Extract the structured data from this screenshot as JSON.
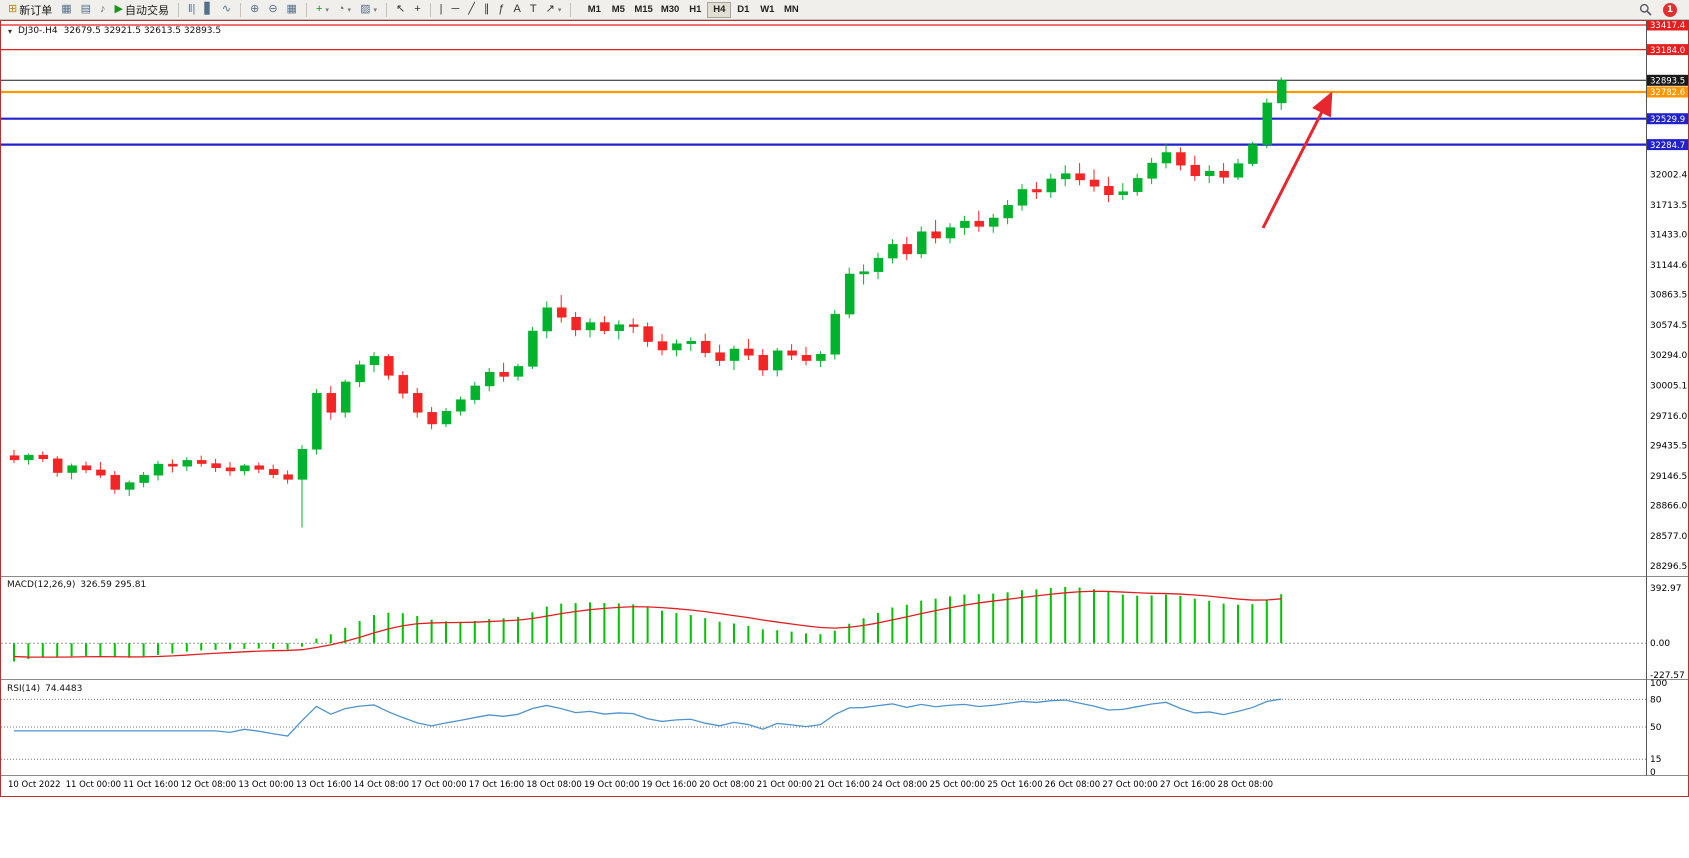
{
  "icons": {
    "collapse_arrow": "▾"
  },
  "toolbar": {
    "items": [
      {
        "name": "new-order",
        "glyph": "⊞",
        "color": "#b8860b",
        "label": "新订单"
      },
      {
        "name": "charts",
        "glyph": "▦",
        "color": "#55708a"
      },
      {
        "name": "profiles",
        "glyph": "▤",
        "color": "#55708a"
      },
      {
        "name": "alerts",
        "glyph": "♪",
        "color": "#55708a"
      },
      {
        "name": "auto-trading",
        "glyph": "▶",
        "color": "#169616",
        "label": "自动交易"
      },
      {
        "sep": true
      },
      {
        "name": "bar-chart-mode",
        "glyph": "‖|",
        "color": "#55708a"
      },
      {
        "name": "candle-chart-mode",
        "glyph": "▋",
        "color": "#55708a"
      },
      {
        "name": "line-chart-mode",
        "glyph": "∿",
        "color": "#55708a"
      },
      {
        "sep": true
      },
      {
        "name": "zoom-in",
        "glyph": "⊕",
        "color": "#55708a"
      },
      {
        "name": "zoom-out",
        "glyph": "⊖",
        "color": "#55708a"
      },
      {
        "name": "tile-windows",
        "glyph": "▦",
        "color": "#55708a"
      },
      {
        "sep": true
      },
      {
        "name": "indicators",
        "glyph": "+",
        "color": "#169616",
        "caret": true
      },
      {
        "name": "periods",
        "glyph": "◔",
        "color": "#55708a",
        "caret": true
      },
      {
        "name": "templates",
        "glyph": "▨",
        "color": "#55708a",
        "caret": true
      },
      {
        "sep": true
      },
      {
        "name": "cursor",
        "glyph": "↖",
        "color": "#333333"
      },
      {
        "name": "crosshair",
        "glyph": "+",
        "color": "#333333"
      },
      {
        "sep": true
      },
      {
        "name": "vertical-line",
        "glyph": "|",
        "color": "#333333"
      },
      {
        "name": "horizontal-line",
        "glyph": "─",
        "color": "#333333"
      },
      {
        "name": "trendline",
        "glyph": "╱",
        "color": "#333333"
      },
      {
        "name": "channel",
        "glyph": "∥",
        "color": "#333333"
      },
      {
        "name": "fibonacci",
        "glyph": "ƒ",
        "color": "#333333"
      },
      {
        "name": "text",
        "glyph": "A",
        "color": "#333333"
      },
      {
        "name": "label",
        "glyph": "T",
        "color": "#333333"
      },
      {
        "name": "arrows",
        "glyph": "↗",
        "color": "#333333",
        "caret": true
      },
      {
        "sep": true
      }
    ],
    "timeframes": [
      "M1",
      "M5",
      "M15",
      "M30",
      "H1",
      "H4",
      "D1",
      "W1",
      "MN"
    ],
    "active_timeframe": "H4",
    "notification_count": "1"
  },
  "header": {
    "symbol_period": "DJ30-.H4",
    "ohlc": "32679.5 32921.5 32613.5 32893.5"
  },
  "chart_data": {
    "type": "candlestick",
    "symbol": "DJ30-",
    "period": "H4",
    "title": "DJ30-.H4",
    "current_ohlc": {
      "open": 32679.5,
      "high": 32921.5,
      "low": 32613.5,
      "close": 32893.5
    },
    "colors": {
      "bull": "#00b22c",
      "bear": "#f42525"
    },
    "y_range": [
      28210,
      33436
    ],
    "y_ticks": [
      32002.4,
      31713.5,
      31433.0,
      31144.6,
      30863.5,
      30574.5,
      30294.0,
      30005.1,
      29716.0,
      29435.5,
      29146.5,
      28866.0,
      28577.0,
      28296.5
    ],
    "levels": [
      {
        "price": 33417.4,
        "label": "33417.4",
        "color": "#e81d1d",
        "width": 1.2
      },
      {
        "price": 33184.0,
        "label": "33184.0",
        "color": "#e81d1d",
        "width": 1.2
      },
      {
        "price": 32893.5,
        "label": "32893.5",
        "color": "#1a1a1a",
        "width": 1,
        "current": true
      },
      {
        "price": 32782.6,
        "label": "32782.6",
        "color": "#ff9800",
        "width": 2.2
      },
      {
        "price": 32529.9,
        "label": "32529.9",
        "color": "#2222cc",
        "width": 2.2
      },
      {
        "price": 32284.7,
        "label": "32284.7",
        "color": "#2222cc",
        "width": 2.2
      }
    ],
    "x_label_step": 4,
    "x_labels": [
      "10 Oct 2022",
      "11 Oct 00:00",
      "11 Oct 16:00",
      "12 Oct 08:00",
      "13 Oct 00:00",
      "13 Oct 16:00",
      "14 Oct 08:00",
      "17 Oct 00:00",
      "17 Oct 16:00",
      "18 Oct 08:00",
      "19 Oct 00:00",
      "19 Oct 16:00",
      "20 Oct 08:00",
      "21 Oct 00:00",
      "21 Oct 16:00",
      "24 Oct 08:00",
      "25 Oct 00:00",
      "25 Oct 16:00",
      "26 Oct 08:00",
      "27 Oct 00:00",
      "27 Oct 16:00",
      "28 Oct 08:00"
    ],
    "candles": [
      [
        29340,
        29395,
        29270,
        29300
      ],
      [
        29300,
        29360,
        29255,
        29345
      ],
      [
        29345,
        29380,
        29280,
        29310
      ],
      [
        29310,
        29335,
        29140,
        29180
      ],
      [
        29180,
        29265,
        29115,
        29245
      ],
      [
        29245,
        29285,
        29175,
        29205
      ],
      [
        29205,
        29280,
        29130,
        29155
      ],
      [
        29155,
        29195,
        28980,
        29020
      ],
      [
        29020,
        29105,
        28958,
        29085
      ],
      [
        29085,
        29185,
        29040,
        29155
      ],
      [
        29155,
        29290,
        29105,
        29260
      ],
      [
        29260,
        29305,
        29180,
        29240
      ],
      [
        29240,
        29325,
        29195,
        29295
      ],
      [
        29295,
        29340,
        29235,
        29265
      ],
      [
        29265,
        29310,
        29185,
        29225
      ],
      [
        29225,
        29280,
        29150,
        29195
      ],
      [
        29195,
        29260,
        29155,
        29245
      ],
      [
        29245,
        29275,
        29175,
        29210
      ],
      [
        29210,
        29255,
        29125,
        29160
      ],
      [
        29160,
        29200,
        29075,
        29115
      ],
      [
        29115,
        29440,
        28660,
        29400
      ],
      [
        29400,
        29970,
        29350,
        29930
      ],
      [
        29930,
        30000,
        29680,
        29750
      ],
      [
        29750,
        30060,
        29700,
        30038
      ],
      [
        30038,
        30240,
        29990,
        30200
      ],
      [
        30200,
        30320,
        30130,
        30280
      ],
      [
        30280,
        30300,
        30060,
        30100
      ],
      [
        30100,
        30140,
        29880,
        29930
      ],
      [
        29930,
        29980,
        29700,
        29750
      ],
      [
        29750,
        29800,
        29590,
        29640
      ],
      [
        29640,
        29790,
        29610,
        29760
      ],
      [
        29760,
        29900,
        29720,
        29870
      ],
      [
        29870,
        30040,
        29830,
        30000
      ],
      [
        30000,
        30170,
        29950,
        30130
      ],
      [
        30130,
        30220,
        30040,
        30090
      ],
      [
        30090,
        30210,
        30050,
        30185
      ],
      [
        30185,
        30560,
        30160,
        30520
      ],
      [
        30520,
        30800,
        30450,
        30740
      ],
      [
        30740,
        30860,
        30600,
        30650
      ],
      [
        30650,
        30700,
        30470,
        30530
      ],
      [
        30530,
        30640,
        30460,
        30600
      ],
      [
        30600,
        30660,
        30490,
        30523
      ],
      [
        30523,
        30620,
        30440,
        30580
      ],
      [
        30580,
        30640,
        30500,
        30562
      ],
      [
        30562,
        30600,
        30370,
        30420
      ],
      [
        30420,
        30490,
        30290,
        30340
      ],
      [
        30340,
        30440,
        30280,
        30400
      ],
      [
        30400,
        30460,
        30330,
        30423
      ],
      [
        30423,
        30495,
        30270,
        30315
      ],
      [
        30315,
        30390,
        30190,
        30240
      ],
      [
        30240,
        30380,
        30150,
        30350
      ],
      [
        30350,
        30445,
        30245,
        30290
      ],
      [
        30290,
        30350,
        30095,
        30150
      ],
      [
        30150,
        30360,
        30090,
        30333
      ],
      [
        30333,
        30395,
        30245,
        30290
      ],
      [
        30290,
        30370,
        30195,
        30240
      ],
      [
        30240,
        30330,
        30180,
        30300
      ],
      [
        30300,
        30720,
        30250,
        30680
      ],
      [
        30680,
        31120,
        30640,
        31060
      ],
      [
        31060,
        31150,
        30960,
        31082
      ],
      [
        31082,
        31260,
        31010,
        31210
      ],
      [
        31210,
        31390,
        31160,
        31340
      ],
      [
        31340,
        31410,
        31190,
        31250
      ],
      [
        31250,
        31510,
        31210,
        31460
      ],
      [
        31460,
        31570,
        31350,
        31400
      ],
      [
        31400,
        31540,
        31350,
        31499
      ],
      [
        31499,
        31610,
        31430,
        31560
      ],
      [
        31560,
        31660,
        31460,
        31510
      ],
      [
        31510,
        31630,
        31450,
        31590
      ],
      [
        31590,
        31760,
        31530,
        31710
      ],
      [
        31710,
        31910,
        31660,
        31860
      ],
      [
        31860,
        31930,
        31770,
        31836
      ],
      [
        31836,
        32010,
        31780,
        31960
      ],
      [
        31960,
        32090,
        31890,
        32010
      ],
      [
        32010,
        32110,
        31900,
        31950
      ],
      [
        31950,
        32050,
        31840,
        31890
      ],
      [
        31890,
        31980,
        31740,
        31810
      ],
      [
        31810,
        31920,
        31760,
        31839
      ],
      [
        31839,
        32010,
        31800,
        31965
      ],
      [
        31965,
        32160,
        31910,
        32110
      ],
      [
        32110,
        32290,
        32060,
        32210
      ],
      [
        32210,
        32260,
        32040,
        32090
      ],
      [
        32090,
        32180,
        31940,
        31990
      ],
      [
        31990,
        32090,
        31920,
        32033
      ],
      [
        32033,
        32110,
        31915,
        31975
      ],
      [
        31975,
        32150,
        31950,
        32105
      ],
      [
        32105,
        32310,
        32080,
        32285
      ],
      [
        32285,
        32720,
        32250,
        32679.5
      ],
      [
        32679.5,
        32921.5,
        32613.5,
        32893.5
      ]
    ],
    "indicators": [
      {
        "name": "MACD",
        "label": "MACD(12,26,9)",
        "values_text": "326.59 295.81",
        "y_range": [
          -240,
          470
        ],
        "axis_ticks": [
          {
            "v": 392.97,
            "t": "392.97"
          },
          {
            "v": 0,
            "t": "0.00"
          },
          {
            "v": -227.57,
            "t": "-227.57"
          }
        ],
        "histogram_color": "#00c400",
        "signal_color": "#e02020"
      },
      {
        "name": "RSI",
        "label": "RSI(14)",
        "values_text": "74.4483",
        "y_range": [
          0,
          100
        ],
        "axis_ticks": [
          {
            "v": 100,
            "t": "100"
          },
          {
            "v": 80,
            "t": "80"
          },
          {
            "v": 50,
            "t": "50"
          },
          {
            "v": 15,
            "t": "15"
          },
          {
            "v": 0,
            "t": "0"
          }
        ],
        "levels": [
          80,
          50,
          15
        ],
        "line_color": "#4f94cd"
      }
    ],
    "trend_arrow": {
      "color": "#e8262d",
      "direction": "up"
    }
  }
}
